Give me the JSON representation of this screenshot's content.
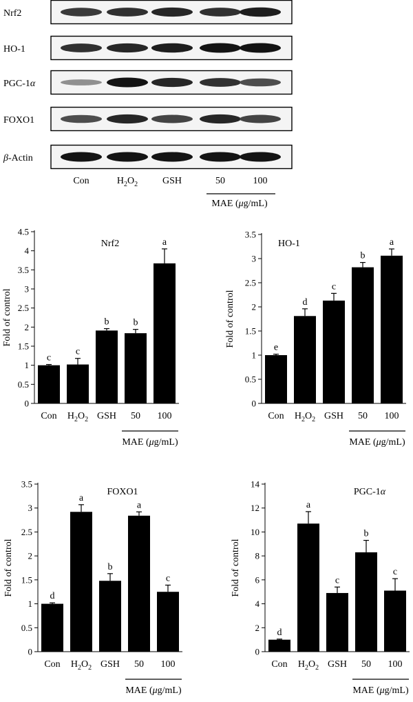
{
  "blot": {
    "rows": [
      {
        "label_main": "Nrf2",
        "label_greek": "",
        "intensity": [
          0.8,
          0.85,
          0.9,
          0.85,
          0.95
        ]
      },
      {
        "label_main": "HO-1",
        "label_greek": "",
        "intensity": [
          0.85,
          0.9,
          0.95,
          1.0,
          1.0
        ]
      },
      {
        "label_main": "PGC-1",
        "label_greek": "α",
        "intensity": [
          0.35,
          1.0,
          0.9,
          0.85,
          0.7
        ]
      },
      {
        "label_main": "FOXO1",
        "label_greek": "",
        "intensity": [
          0.7,
          0.9,
          0.75,
          0.9,
          0.75
        ]
      },
      {
        "label_main": "-Actin",
        "label_greek": "β",
        "intensity": [
          1.0,
          1.0,
          1.0,
          1.0,
          1.0
        ]
      }
    ],
    "lanes": [
      "Con",
      "H",
      "GSH",
      "50",
      "100"
    ],
    "h2o2": {
      "h": "H",
      "sub1": "2",
      "o": "O",
      "sub2": "2"
    },
    "mae_label": {
      "prefix": "MAE (",
      "mu": "μ",
      "suffix": "g/mL)"
    }
  },
  "axis_common": {
    "ylabel": "Fold of control",
    "categories": [
      "Con",
      "H2O2",
      "GSH",
      "50",
      "100"
    ],
    "mae_label": {
      "prefix": "MAE (",
      "mu": "μ",
      "suffix": "g/mL)"
    }
  },
  "chart_data": [
    {
      "type": "bar",
      "title_main": "Nrf2",
      "title_greek": "",
      "categories": [
        "Con",
        "H2O2",
        "GSH",
        "50",
        "100"
      ],
      "values": [
        1.0,
        1.02,
        1.91,
        1.84,
        3.67
      ],
      "errors": [
        0.02,
        0.16,
        0.05,
        0.1,
        0.38
      ],
      "letters": [
        "c",
        "c",
        "b",
        "b",
        "a"
      ],
      "ylim": [
        0,
        4.5
      ],
      "ticks": [
        "0",
        "0.5",
        "1",
        "1.5",
        "2",
        "2.5",
        "3",
        "3.5",
        "4",
        "4.5"
      ]
    },
    {
      "type": "bar",
      "title_main": "HO-1",
      "title_greek": "",
      "categories": [
        "Con",
        "H2O2",
        "GSH",
        "50",
        "100"
      ],
      "values": [
        1.0,
        1.81,
        2.13,
        2.82,
        3.06
      ],
      "errors": [
        0.02,
        0.15,
        0.15,
        0.1,
        0.14
      ],
      "letters": [
        "e",
        "d",
        "c",
        "b",
        "a"
      ],
      "ylim": [
        0,
        3.5
      ],
      "ticks": [
        "0",
        "0.5",
        "1",
        "1.5",
        "2",
        "2.5",
        "3",
        "3.5"
      ]
    },
    {
      "type": "bar",
      "title_main": "FOXO1",
      "title_greek": "",
      "categories": [
        "Con",
        "H2O2",
        "GSH",
        "50",
        "100"
      ],
      "values": [
        1.0,
        2.92,
        1.48,
        2.84,
        1.25
      ],
      "errors": [
        0.02,
        0.15,
        0.15,
        0.08,
        0.14
      ],
      "letters": [
        "d",
        "a",
        "b",
        "a",
        "c"
      ],
      "ylim": [
        0,
        3.5
      ],
      "ticks": [
        "0",
        "0.5",
        "1",
        "1.5",
        "2",
        "2.5",
        "3",
        "3.5"
      ]
    },
    {
      "type": "bar",
      "title_main": "PGC-1",
      "title_greek": "α",
      "categories": [
        "Con",
        "H2O2",
        "GSH",
        "50",
        "100"
      ],
      "values": [
        1.0,
        10.7,
        4.9,
        8.3,
        5.1
      ],
      "errors": [
        0.05,
        1.0,
        0.5,
        1.0,
        1.0
      ],
      "letters": [
        "d",
        "a",
        "c",
        "b",
        "c"
      ],
      "ylim": [
        0,
        14
      ],
      "ticks": [
        "0",
        "2",
        "4",
        "6",
        "8",
        "10",
        "12",
        "14"
      ]
    }
  ]
}
